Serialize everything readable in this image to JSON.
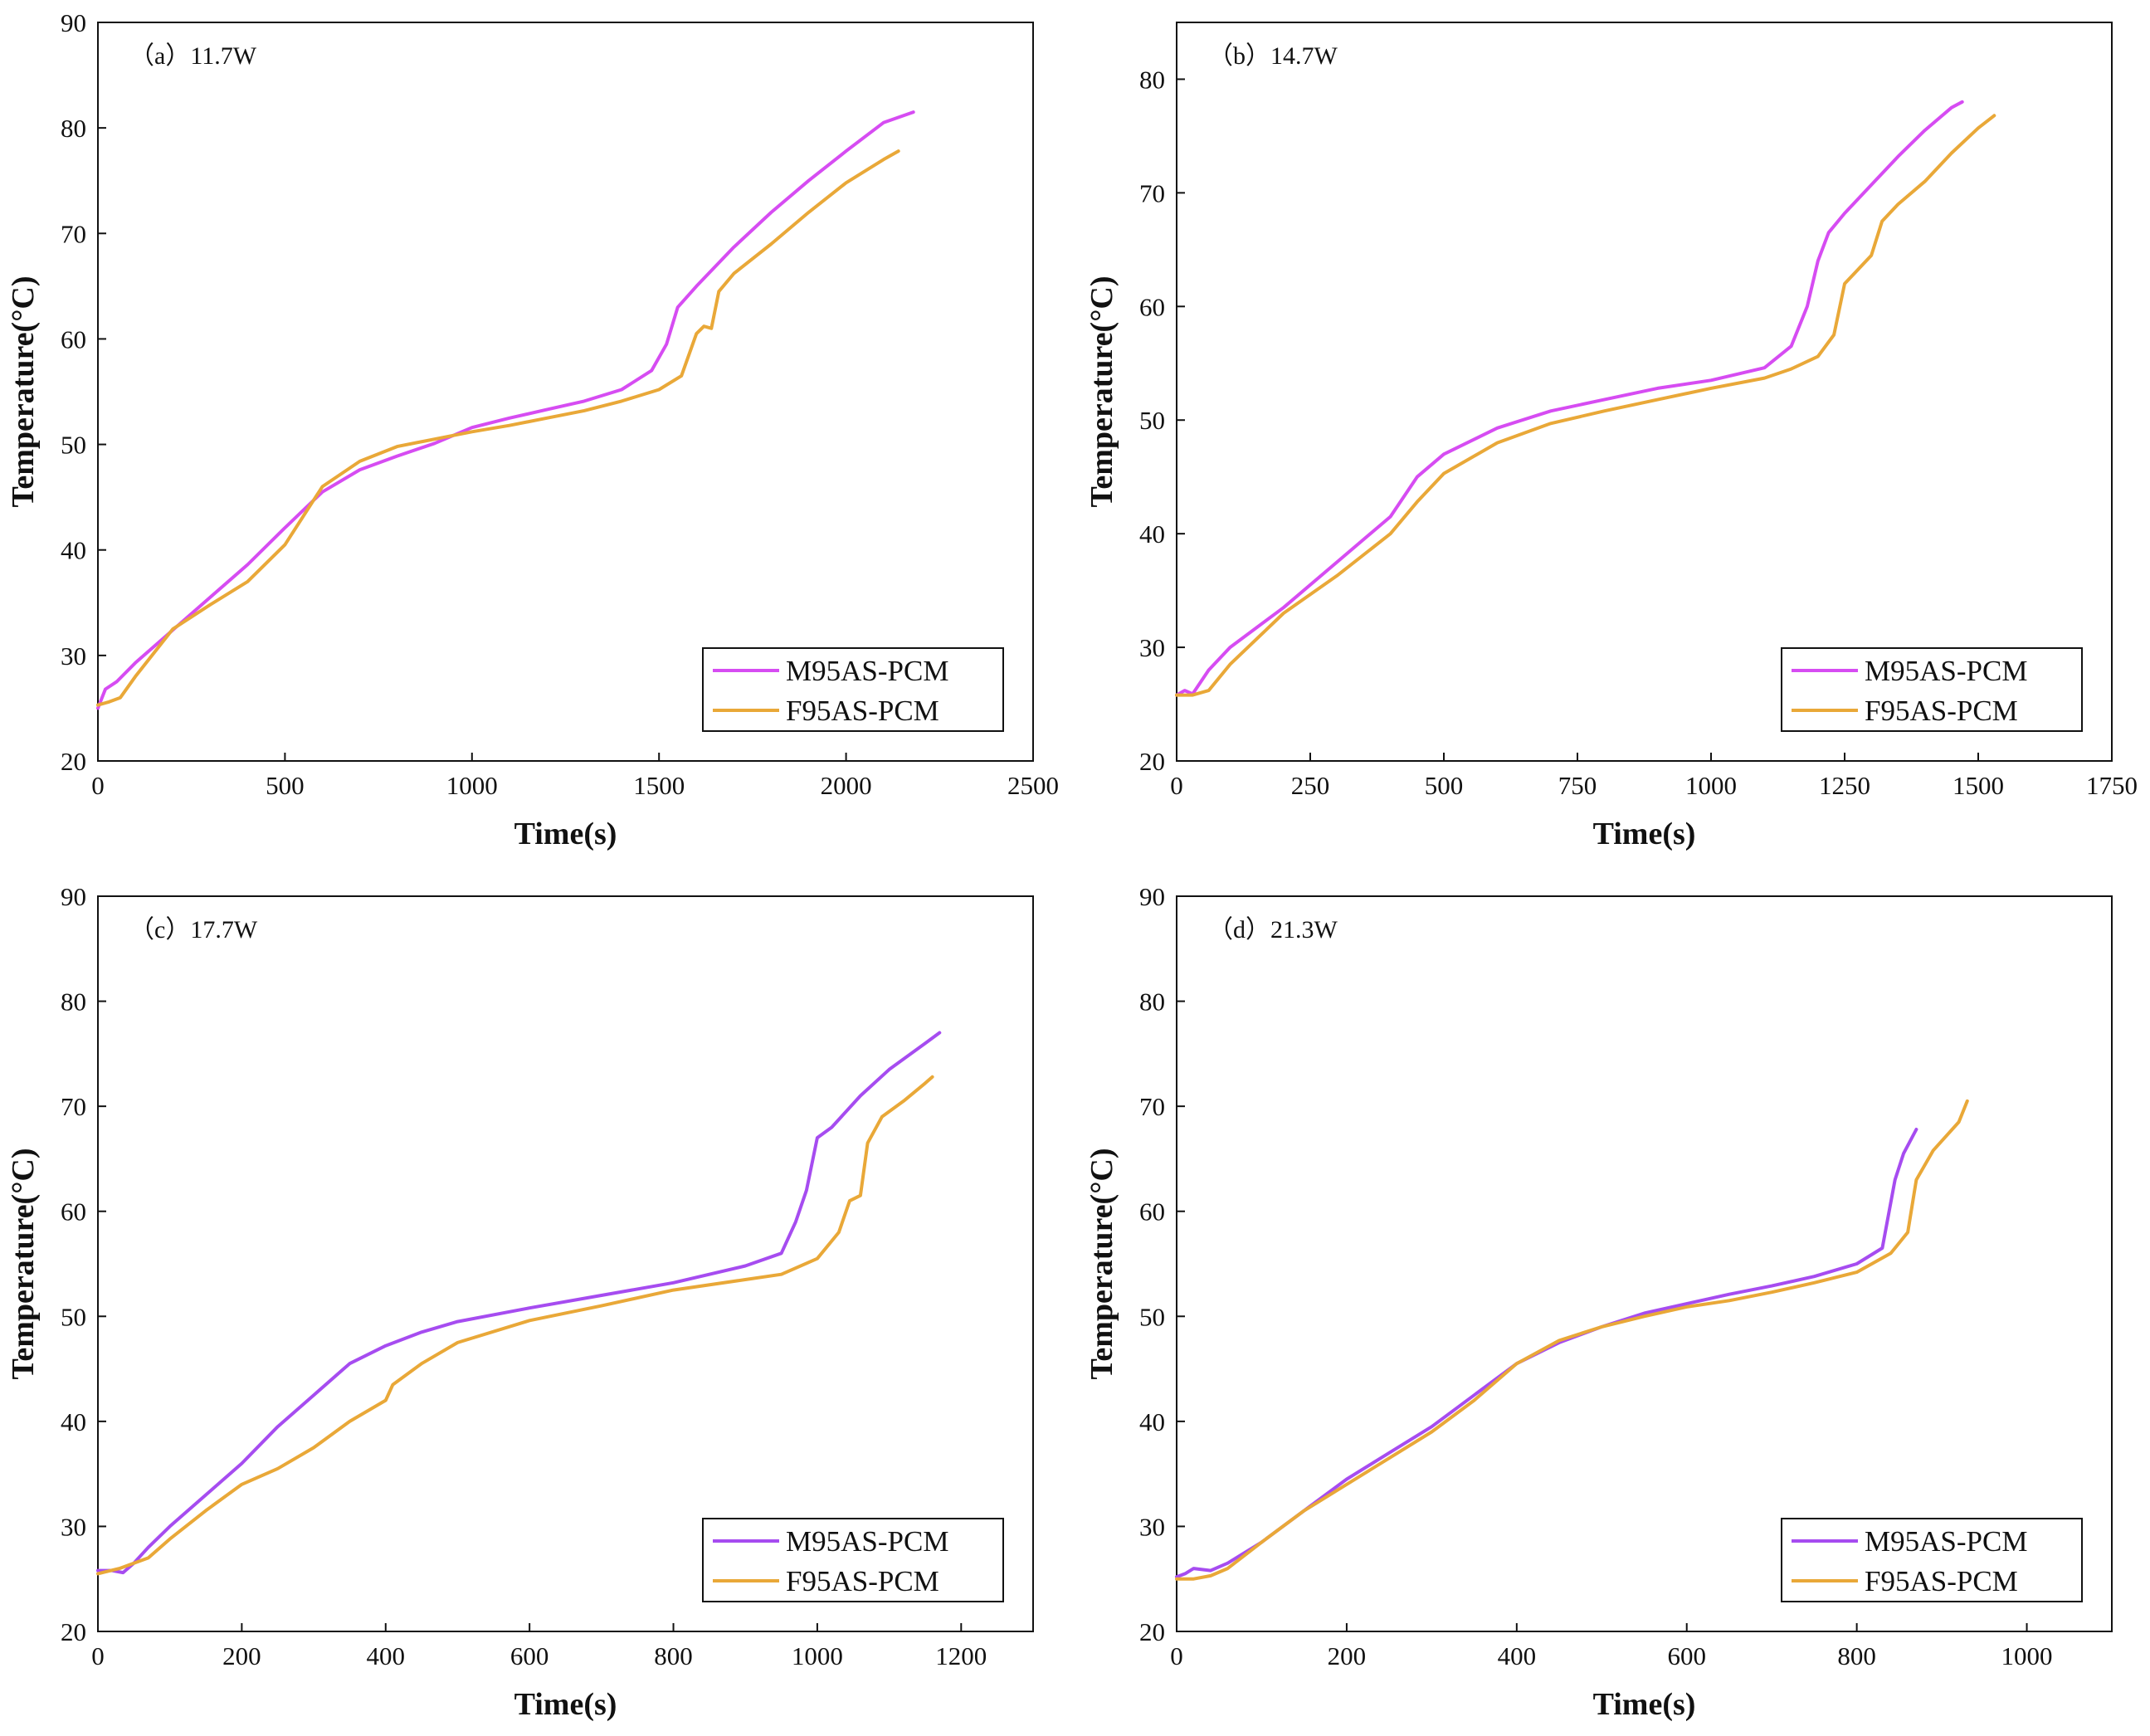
{
  "colors": {
    "m95": "#d64cf2",
    "f95": "#e9a838",
    "m95_alt": "#a64cf0",
    "axis": "#111111"
  },
  "chart_data": [
    {
      "type": "line",
      "panel": "(a)",
      "power": "11.7W",
      "title": "（a）11.7W",
      "xlabel": "Time(s)",
      "ylabel": "Temperature(°C)",
      "xlim": [
        0,
        2500
      ],
      "ylim": [
        20,
        90
      ],
      "xticks": [
        "0",
        "500",
        "1000",
        "1500",
        "2000",
        "2500"
      ],
      "yticks": [
        "20",
        "30",
        "40",
        "50",
        "60",
        "70",
        "80",
        "90"
      ],
      "legend_position": "bottom-right",
      "series": [
        {
          "name": "M95AS-PCM",
          "color": "m95",
          "x": [
            0,
            20,
            50,
            100,
            200,
            300,
            400,
            500,
            600,
            700,
            800,
            900,
            1000,
            1100,
            1200,
            1300,
            1400,
            1480,
            1520,
            1550,
            1600,
            1700,
            1800,
            1900,
            2000,
            2100,
            2180
          ],
          "y": [
            25.0,
            26.8,
            27.5,
            29.3,
            32.4,
            35.5,
            38.6,
            42.1,
            45.5,
            47.6,
            48.9,
            50.1,
            51.6,
            52.5,
            53.3,
            54.1,
            55.2,
            57.0,
            59.5,
            63.0,
            65.0,
            68.7,
            72.0,
            75.0,
            77.8,
            80.5,
            81.5
          ]
        },
        {
          "name": "F95AS-PCM",
          "color": "f95",
          "x": [
            0,
            30,
            60,
            100,
            200,
            300,
            400,
            500,
            600,
            700,
            800,
            900,
            1000,
            1100,
            1200,
            1300,
            1400,
            1500,
            1560,
            1600,
            1620,
            1640,
            1660,
            1700,
            1800,
            1900,
            2000,
            2100,
            2140
          ],
          "y": [
            25.3,
            25.6,
            26.0,
            28.0,
            32.5,
            34.8,
            37.0,
            40.5,
            46.0,
            48.4,
            49.8,
            50.5,
            51.2,
            51.8,
            52.5,
            53.2,
            54.1,
            55.2,
            56.5,
            60.5,
            61.2,
            61.0,
            64.5,
            66.2,
            69.0,
            72.0,
            74.8,
            77.0,
            77.8
          ]
        }
      ]
    },
    {
      "type": "line",
      "panel": "(b)",
      "power": "14.7W",
      "title": "（b）14.7W",
      "xlabel": "Time(s)",
      "ylabel": "Temperature(°C)",
      "xlim": [
        0,
        1750
      ],
      "ylim": [
        20,
        85
      ],
      "xticks": [
        "0",
        "250",
        "500",
        "750",
        "1000",
        "1250",
        "1500",
        "1750"
      ],
      "yticks": [
        "20",
        "30",
        "40",
        "50",
        "60",
        "70",
        "80"
      ],
      "legend_position": "bottom-right",
      "series": [
        {
          "name": "M95AS-PCM",
          "color": "m95",
          "x": [
            0,
            15,
            30,
            60,
            100,
            200,
            300,
            400,
            450,
            500,
            600,
            700,
            800,
            900,
            1000,
            1100,
            1150,
            1180,
            1200,
            1220,
            1250,
            1300,
            1350,
            1400,
            1450,
            1470
          ],
          "y": [
            25.8,
            26.2,
            25.9,
            28.0,
            30.0,
            33.5,
            37.5,
            41.5,
            45.0,
            47.0,
            49.3,
            50.8,
            51.8,
            52.8,
            53.5,
            54.6,
            56.5,
            60.0,
            64.0,
            66.5,
            68.2,
            70.7,
            73.2,
            75.5,
            77.5,
            78.0
          ]
        },
        {
          "name": "F95AS-PCM",
          "color": "f95",
          "x": [
            0,
            30,
            60,
            100,
            200,
            300,
            400,
            450,
            500,
            600,
            700,
            800,
            900,
            1000,
            1100,
            1150,
            1200,
            1230,
            1250,
            1270,
            1300,
            1320,
            1350,
            1400,
            1450,
            1500,
            1530
          ],
          "y": [
            25.8,
            25.8,
            26.2,
            28.5,
            33.0,
            36.3,
            40.0,
            42.8,
            45.3,
            48.0,
            49.7,
            50.8,
            51.8,
            52.8,
            53.7,
            54.5,
            55.6,
            57.5,
            62.0,
            63.0,
            64.5,
            67.5,
            69.0,
            71.0,
            73.5,
            75.7,
            76.8
          ]
        }
      ]
    },
    {
      "type": "line",
      "panel": "(c)",
      "power": "17.7W",
      "title": "（c）17.7W",
      "xlabel": "Time(s)",
      "ylabel": "Temperature(°C)",
      "xlim": [
        0,
        1300
      ],
      "ylim": [
        20,
        90
      ],
      "xticks": [
        "0",
        "200",
        "400",
        "600",
        "800",
        "1000",
        "1200"
      ],
      "yticks": [
        "20",
        "30",
        "40",
        "50",
        "60",
        "70",
        "80",
        "90"
      ],
      "legend_position": "bottom-right",
      "series": [
        {
          "name": "M95AS-PCM",
          "color": "m95_alt",
          "x": [
            0,
            20,
            35,
            50,
            70,
            100,
            150,
            200,
            250,
            300,
            350,
            400,
            450,
            500,
            600,
            700,
            800,
            900,
            950,
            970,
            985,
            1000,
            1020,
            1060,
            1100,
            1150,
            1170
          ],
          "y": [
            25.8,
            25.8,
            25.6,
            26.5,
            28.0,
            30.0,
            33.0,
            36.0,
            39.5,
            42.5,
            45.5,
            47.2,
            48.5,
            49.5,
            50.8,
            52.0,
            53.2,
            54.8,
            56.0,
            59.0,
            62.0,
            67.0,
            68.0,
            71.0,
            73.5,
            76.0,
            77.0
          ]
        },
        {
          "name": "F95AS-PCM",
          "color": "f95",
          "x": [
            0,
            30,
            50,
            70,
            100,
            150,
            200,
            250,
            300,
            350,
            400,
            410,
            450,
            500,
            600,
            700,
            800,
            900,
            950,
            1000,
            1030,
            1045,
            1060,
            1070,
            1090,
            1120,
            1150,
            1160
          ],
          "y": [
            25.5,
            26.0,
            26.5,
            27.0,
            28.8,
            31.5,
            34.0,
            35.5,
            37.5,
            40.0,
            42.0,
            43.5,
            45.5,
            47.5,
            49.6,
            51.0,
            52.5,
            53.5,
            54.0,
            55.5,
            58.0,
            61.0,
            61.5,
            66.5,
            69.0,
            70.5,
            72.2,
            72.8
          ]
        }
      ]
    },
    {
      "type": "line",
      "panel": "(d)",
      "power": "21.3W",
      "title": "（d）21.3W",
      "xlabel": "Time(s)",
      "ylabel": "Temperature(°C)",
      "xlim": [
        0,
        1100
      ],
      "ylim": [
        20,
        90
      ],
      "xticks": [
        "0",
        "200",
        "400",
        "600",
        "800",
        "1000"
      ],
      "yticks": [
        "20",
        "30",
        "40",
        "50",
        "60",
        "70",
        "80",
        "90"
      ],
      "legend_position": "bottom-right",
      "series": [
        {
          "name": "M95AS-PCM",
          "color": "m95_alt",
          "x": [
            0,
            10,
            20,
            40,
            60,
            100,
            150,
            200,
            250,
            300,
            350,
            400,
            450,
            500,
            550,
            600,
            650,
            700,
            750,
            800,
            830,
            845,
            855,
            870
          ],
          "y": [
            25.2,
            25.5,
            26.0,
            25.8,
            26.5,
            28.5,
            31.5,
            34.5,
            37.0,
            39.5,
            42.5,
            45.5,
            47.5,
            49.0,
            50.3,
            51.2,
            52.1,
            52.9,
            53.8,
            55.0,
            56.5,
            63.0,
            65.5,
            67.8
          ]
        },
        {
          "name": "F95AS-PCM",
          "color": "f95",
          "x": [
            0,
            20,
            40,
            60,
            100,
            150,
            200,
            250,
            300,
            350,
            400,
            450,
            500,
            550,
            600,
            650,
            700,
            750,
            800,
            840,
            860,
            870,
            890,
            920,
            930
          ],
          "y": [
            25.0,
            25.0,
            25.3,
            26.0,
            28.5,
            31.5,
            34.0,
            36.5,
            39.0,
            42.0,
            45.5,
            47.7,
            49.0,
            50.0,
            50.9,
            51.5,
            52.3,
            53.2,
            54.2,
            56.0,
            58.0,
            63.0,
            65.8,
            68.5,
            70.5
          ]
        }
      ]
    }
  ]
}
